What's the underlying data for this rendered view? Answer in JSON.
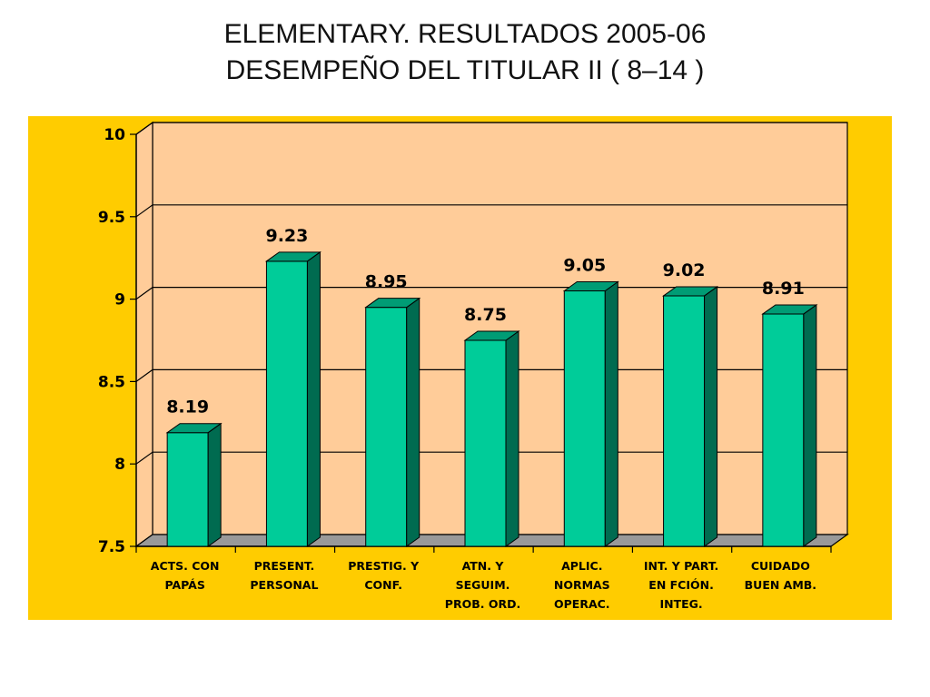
{
  "title": {
    "line1": "ELEMENTARY. RESULTADOS 2005-06",
    "line2": "DESEMPEÑO DEL TITULAR II ( 8–14 )"
  },
  "colors": {
    "chart_background": "#FFCC00",
    "plot_background": "#FFCC99",
    "bar_front": "#00CC99",
    "bar_side": "#006B50",
    "bar_top": "#009C75",
    "floor": "#999999",
    "gridline": "#000000"
  },
  "chart_data": {
    "type": "bar",
    "categories": [
      [
        "ACTS. CON",
        "PAPÁS"
      ],
      [
        "PRESENT.",
        "PERSONAL"
      ],
      [
        "PRESTIG. Y",
        "CONF."
      ],
      [
        "ATN. Y",
        "SEGUIM.",
        "PROB. ORD."
      ],
      [
        "APLIC.",
        "NORMAS",
        "OPERAC."
      ],
      [
        "INT. Y PART.",
        "EN FCIÓN.",
        "INTEG."
      ],
      [
        "CUIDADO",
        "BUEN AMB."
      ]
    ],
    "values": [
      8.19,
      9.23,
      8.95,
      8.75,
      9.05,
      9.02,
      8.91
    ],
    "value_labels": [
      "8.19",
      "9.23",
      "8.95",
      "8.75",
      "9.05",
      "9.02",
      "8.91"
    ],
    "ylim": [
      7.5,
      10
    ],
    "yticks": [
      7.5,
      8,
      8.5,
      9,
      9.5,
      10
    ],
    "ytick_labels": [
      "7.5",
      "8",
      "8.5",
      "9",
      "9.5",
      "10"
    ],
    "grid": true,
    "legend": "none",
    "style": "3d-column"
  }
}
